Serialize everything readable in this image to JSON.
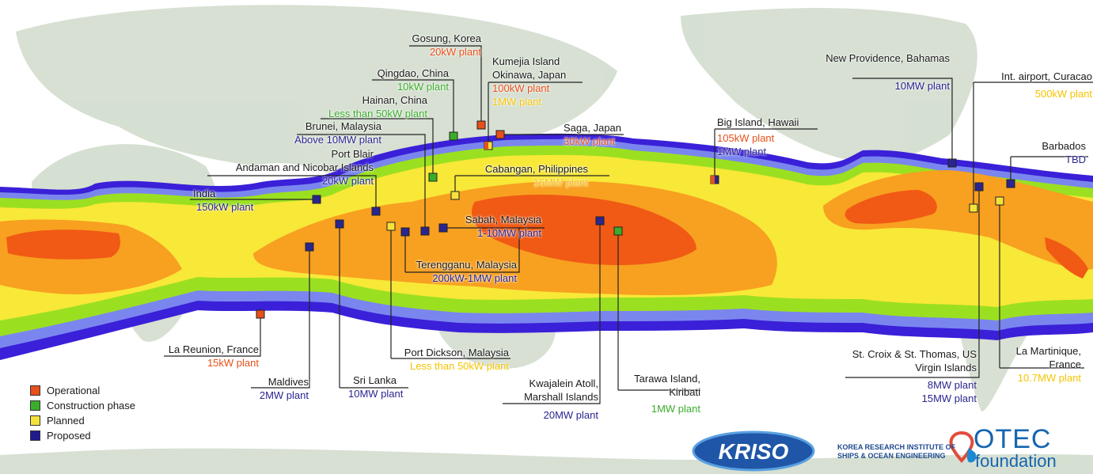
{
  "legend": [
    {
      "label": "Operational",
      "color": "#e8501a"
    },
    {
      "label": "Construction phase",
      "color": "#3aad2a"
    },
    {
      "label": "Planned",
      "color": "#f5e33c"
    },
    {
      "label": "Proposed",
      "color": "#1f1a8c"
    }
  ],
  "colors": {
    "operational": "#e8501a",
    "construction": "#3aad2a",
    "planned": "#f5c400",
    "proposed": "#2a2590",
    "zone_core": "#f05a14",
    "zone_orange": "#f8a020",
    "zone_yellow": "#f8e838",
    "zone_lime": "#9be020",
    "zone_blue": "#7a86ee",
    "zone_edge": "#3a20d8"
  },
  "sites": {
    "gosung": {
      "name": "Gosung, Korea",
      "plant": "20kW plant",
      "status": "operational"
    },
    "qingdao": {
      "name": "Qingdao, China",
      "plant": "10kW plant",
      "status": "construction"
    },
    "kumejia": {
      "name": "Kumejia Island Okinawa, Japan",
      "name_line1": "Kumejia Island",
      "name_line2": "Okinawa, Japan",
      "plant": "100kW plant",
      "plant2": "1MW plant",
      "status": "operational"
    },
    "hainan": {
      "name": "Hainan, China",
      "plant": "Less than 50kW plant",
      "status": "construction"
    },
    "brunei": {
      "name": "Brunei, Malaysia",
      "plant": "Above 10MW plant",
      "status": "proposed"
    },
    "saga": {
      "name": "Saga, Japan",
      "plant": "30kW plant",
      "status": "operational"
    },
    "portblair": {
      "name": "Port Blair Andaman and Nicobar Islands",
      "name_line1": "Port Blair",
      "name_line2": "Andaman and Nicobar Islands",
      "plant": "20kW plant",
      "status": "proposed"
    },
    "india": {
      "name": "India",
      "plant": "150kW plant",
      "status": "proposed"
    },
    "cabangan": {
      "name": "Cabangan, Philippines",
      "plant": "16MW plant",
      "status": "planned"
    },
    "sabah": {
      "name": "Sabah, Malaysia",
      "plant": "1-10MW plant",
      "status": "proposed"
    },
    "terengganu": {
      "name": "Terengganu, Malaysia",
      "plant": "200kW-1MW plant",
      "status": "proposed"
    },
    "reunion": {
      "name": "La Reunion, France",
      "plant": "15kW plant",
      "status": "operational"
    },
    "maldives": {
      "name": "Maldives",
      "plant": "2MW plant",
      "status": "proposed"
    },
    "srilanka": {
      "name": "Sri Lanka",
      "plant": "10MW plant",
      "status": "proposed"
    },
    "portdickson": {
      "name": "Port Dickson, Malaysia",
      "plant": "Less than 50kW plant",
      "status": "planned"
    },
    "kwajalein": {
      "name": "Kwajalein Atoll, Marshall Islands",
      "name_line1": "Kwajalein Atoll,",
      "name_line2": "Marshall Islands",
      "plant": "20MW plant",
      "status": "proposed"
    },
    "tarawa": {
      "name": "Tarawa Island, Kiribati",
      "name_line1": "Tarawa Island,",
      "name_line2": "Kiribati",
      "plant": "1MW plant",
      "status": "construction"
    },
    "hawaii": {
      "name": "Big Island, Hawaii",
      "plant": "105kW plant",
      "plant2": "1MW plant",
      "status": "operational"
    },
    "bahamas": {
      "name": "New Providence, Bahamas",
      "plant": "10MW plant",
      "status": "proposed"
    },
    "curacao": {
      "name": "Int. airport, Curacao",
      "plant": "500kW plant",
      "status": "planned"
    },
    "barbados": {
      "name": "Barbados",
      "plant": "TBD",
      "status": "proposed"
    },
    "virgin": {
      "name": "St. Croix & St. Thomas, US Virgin Islands",
      "name_line1": "St. Croix & St. Thomas, US",
      "name_line2": "Virgin Islands",
      "plant": "8MW plant",
      "plant2": "15MW plant",
      "status": "proposed"
    },
    "martinique": {
      "name": "La Martinique, France",
      "name_line1": "La Martinique,",
      "name_line2": "France",
      "plant": "10.7MW plant",
      "status": "planned"
    }
  },
  "logos": {
    "kriso": "KRISO",
    "kriso_full_line1": "KOREA RESEARCH INSTITUTE OF",
    "kriso_full_line2": "SHIPS & OCEAN ENGINEERING",
    "otec_line1": "OTEC",
    "otec_line2": "foundation"
  }
}
